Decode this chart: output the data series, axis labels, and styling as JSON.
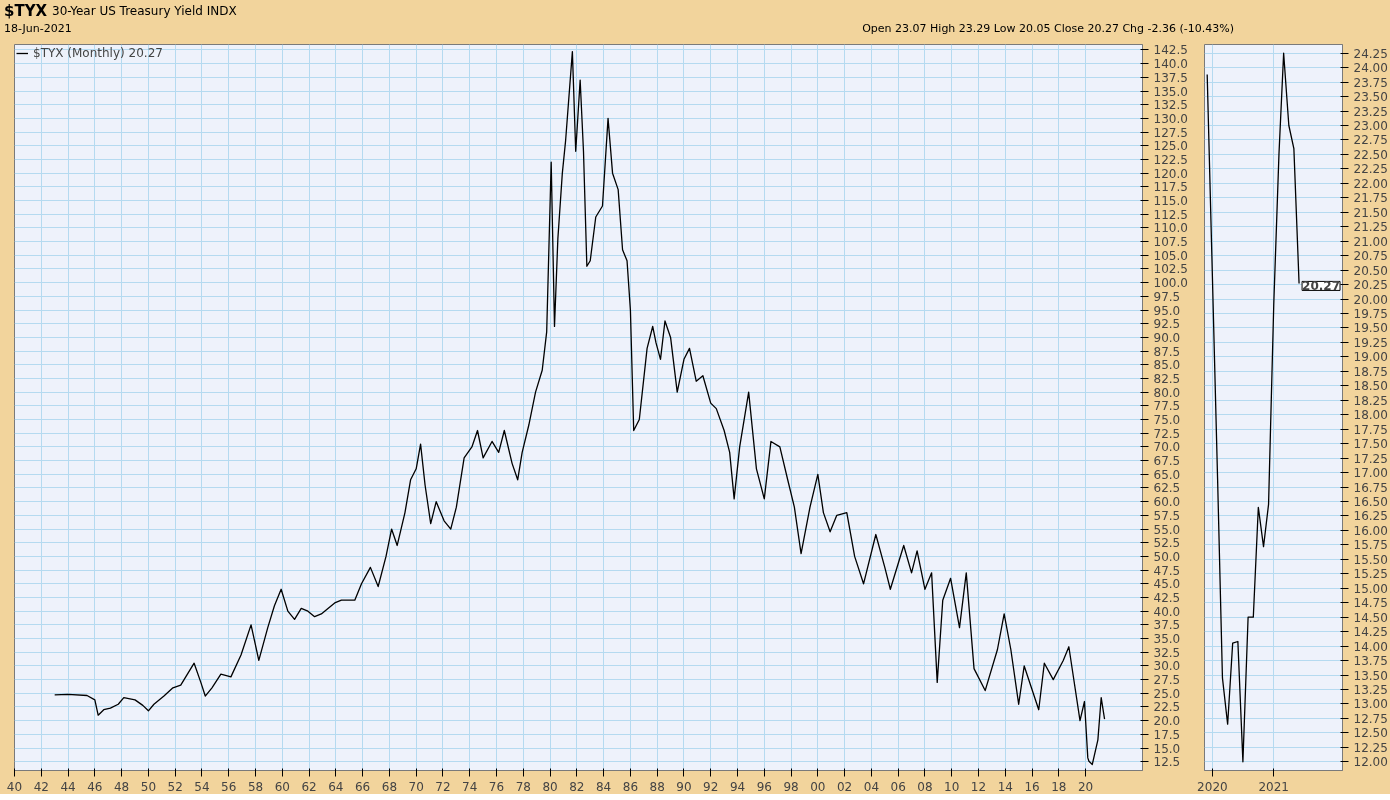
{
  "chart_data": [
    {
      "type": "line",
      "title": "$TYX 30-Year US Treasury Yield INDX",
      "subtitle": "18-Jun-2021",
      "annotations": [
        "Open 23.07  High 23.29  Low 20.05  Close 20.27  Chg -2.36 (-10.43%)"
      ],
      "x": [
        "1943-01",
        "1944-01",
        "1945-06",
        "1946-01",
        "1946-04",
        "1946-09",
        "1947-03",
        "1947-10",
        "1948-03",
        "1949-01",
        "1949-08",
        "1950-01",
        "1950-06",
        "1951-03",
        "1951-11",
        "1952-06",
        "1953-06",
        "1953-12",
        "1954-04",
        "1954-10",
        "1955-06",
        "1956-03",
        "1956-12",
        "1957-09",
        "1958-04",
        "1958-12",
        "1959-06",
        "1959-12",
        "1960-06",
        "1960-12",
        "1961-06",
        "1961-12",
        "1962-06",
        "1962-12",
        "1963-06",
        "1963-12",
        "1964-06",
        "1965-06",
        "1965-12",
        "1966-08",
        "1967-03",
        "1967-10",
        "1968-03",
        "1968-08",
        "1969-03",
        "1969-08",
        "1970-01",
        "1970-05",
        "1970-09",
        "1971-02",
        "1971-07",
        "1972-02",
        "1972-08",
        "1973-01",
        "1973-08",
        "1974-03",
        "1974-08",
        "1975-01",
        "1975-09",
        "1976-03",
        "1976-08",
        "1977-03",
        "1977-08",
        "1977-12",
        "1978-06",
        "1978-12",
        "1979-06",
        "1979-10",
        "1980-02",
        "1980-05",
        "1980-08",
        "1980-12",
        "1981-03",
        "1981-09",
        "1981-12",
        "1982-04",
        "1982-07",
        "1982-10",
        "1983-01",
        "1983-06",
        "1983-12",
        "1984-05",
        "1984-09",
        "1985-02",
        "1985-06",
        "1985-10",
        "1986-01",
        "1986-04",
        "1986-09",
        "1987-04",
        "1987-09",
        "1987-12",
        "1988-04",
        "1988-08",
        "1989-01",
        "1989-07",
        "1990-01",
        "1990-06",
        "1990-12",
        "1991-06",
        "1992-01",
        "1992-06",
        "1993-01",
        "1993-06",
        "1993-10",
        "1994-03",
        "1994-11",
        "1995-06",
        "1996-01",
        "1996-07",
        "1997-03",
        "1997-10",
        "1998-04",
        "1998-10",
        "1999-06",
        "2000-01",
        "2000-06",
        "2000-12",
        "2001-06",
        "2002-03",
        "2002-10",
        "2003-06",
        "2004-05",
        "2005-01",
        "2005-06",
        "2006-06",
        "2007-01",
        "2007-06",
        "2008-01",
        "2008-07",
        "2008-12",
        "2009-05",
        "2009-12",
        "2010-08",
        "2011-02",
        "2011-09",
        "2012-07",
        "2013-06",
        "2013-12",
        "2014-06",
        "2015-01",
        "2015-06",
        "2016-07",
        "2016-12",
        "2017-08",
        "2018-05",
        "2018-10",
        "2019-08",
        "2019-12",
        "2020-03",
        "2020-04",
        "2020-07",
        "2020-12",
        "2021-03",
        "2021-06"
      ],
      "series": [
        {
          "name": "$TYX (Monthly) 20.27",
          "color": "#000000",
          "values": [
            24.7,
            24.8,
            24.6,
            23.8,
            21.0,
            22.0,
            22.3,
            23.0,
            24.2,
            23.8,
            22.8,
            21.8,
            23.0,
            24.5,
            26.0,
            26.5,
            30.5,
            27.0,
            24.5,
            26.0,
            28.5,
            28.0,
            32.0,
            37.5,
            31.0,
            37.0,
            41.0,
            44.0,
            40.0,
            38.5,
            40.5,
            40.0,
            39.0,
            39.5,
            40.5,
            41.5,
            42.0,
            42.0,
            45.0,
            48.0,
            44.5,
            50.0,
            55.0,
            52.0,
            58.0,
            64.0,
            66.0,
            70.5,
            63.0,
            56.0,
            60.0,
            56.5,
            55.0,
            59.0,
            68.0,
            70.0,
            73.0,
            68.0,
            71.0,
            69.0,
            73.0,
            67.0,
            64.0,
            69.0,
            74.0,
            80.0,
            84.0,
            91.0,
            122.0,
            92.0,
            108.0,
            120.0,
            126.0,
            142.2,
            124.0,
            137.0,
            124.0,
            103.0,
            104.0,
            112.0,
            114.0,
            130.0,
            120.0,
            117.0,
            106.0,
            104.0,
            95.0,
            73.0,
            75.0,
            88.0,
            92.0,
            89.0,
            86.0,
            93.0,
            90.0,
            80.0,
            86.0,
            88.0,
            82.0,
            83.0,
            78.0,
            77.0,
            73.0,
            69.0,
            60.5,
            70.0,
            80.0,
            66.0,
            60.5,
            71.0,
            70.0,
            64.0,
            59.0,
            50.5,
            59.0,
            65.0,
            58.0,
            54.5,
            57.5,
            58.0,
            50.0,
            45.0,
            54.0,
            48.0,
            44.0,
            52.0,
            47.0,
            51.0,
            44.0,
            47.0,
            27.0,
            42.0,
            46.0,
            37.0,
            47.0,
            29.5,
            25.5,
            33.0,
            39.5,
            33.0,
            23.0,
            30.0,
            22.0,
            30.5,
            27.5,
            31.0,
            33.5,
            20.0,
            23.5,
            13.2,
            12.6,
            12.0,
            16.5,
            24.2,
            20.3
          ]
        }
      ],
      "xlim": [
        "1940-01",
        "2024-04"
      ],
      "ylim": [
        10.9,
        143.5
      ],
      "xticks": [
        {
          "value": "1940-01",
          "label": "40"
        },
        {
          "value": "1942-01",
          "label": "42"
        },
        {
          "value": "1944-01",
          "label": "44"
        },
        {
          "value": "1946-01",
          "label": "46"
        },
        {
          "value": "1948-01",
          "label": "48"
        },
        {
          "value": "1950-01",
          "label": "50"
        },
        {
          "value": "1952-01",
          "label": "52"
        },
        {
          "value": "1954-01",
          "label": "54"
        },
        {
          "value": "1956-01",
          "label": "56"
        },
        {
          "value": "1958-01",
          "label": "58"
        },
        {
          "value": "1960-01",
          "label": "60"
        },
        {
          "value": "1962-01",
          "label": "62"
        },
        {
          "value": "1964-01",
          "label": "64"
        },
        {
          "value": "1966-01",
          "label": "66"
        },
        {
          "value": "1968-01",
          "label": "68"
        },
        {
          "value": "1970-01",
          "label": "70"
        },
        {
          "value": "1972-01",
          "label": "72"
        },
        {
          "value": "1974-01",
          "label": "74"
        },
        {
          "value": "1976-01",
          "label": "76"
        },
        {
          "value": "1978-01",
          "label": "78"
        },
        {
          "value": "1980-01",
          "label": "80"
        },
        {
          "value": "1982-01",
          "label": "82"
        },
        {
          "value": "1984-01",
          "label": "84"
        },
        {
          "value": "1986-01",
          "label": "86"
        },
        {
          "value": "1988-01",
          "label": "88"
        },
        {
          "value": "1990-01",
          "label": "90"
        },
        {
          "value": "1992-01",
          "label": "92"
        },
        {
          "value": "1994-01",
          "label": "94"
        },
        {
          "value": "1996-01",
          "label": "96"
        },
        {
          "value": "1998-01",
          "label": "98"
        },
        {
          "value": "2000-01",
          "label": "00"
        },
        {
          "value": "2002-01",
          "label": "02"
        },
        {
          "value": "2004-01",
          "label": "04"
        },
        {
          "value": "2006-01",
          "label": "06"
        },
        {
          "value": "2008-01",
          "label": "08"
        },
        {
          "value": "2010-01",
          "label": "10"
        },
        {
          "value": "2012-01",
          "label": "12"
        },
        {
          "value": "2014-01",
          "label": "14"
        },
        {
          "value": "2016-01",
          "label": "16"
        },
        {
          "value": "2018-01",
          "label": "18"
        },
        {
          "value": "2020-01",
          "label": "20"
        }
      ],
      "yticks": [
        12.5,
        {
          "value": 15,
          "label": "15.0"
        },
        17.5,
        {
          "value": 20,
          "label": "20.0"
        },
        22.5,
        {
          "value": 25,
          "label": "25.0"
        },
        27.5,
        {
          "value": 30,
          "label": "30.0"
        },
        32.5,
        {
          "value": 35,
          "label": "35.0"
        },
        37.5,
        {
          "value": 40,
          "label": "40.0"
        },
        42.5,
        {
          "value": 45,
          "label": "45.0"
        },
        47.5,
        {
          "value": 50,
          "label": "50.0"
        },
        52.5,
        {
          "value": 55,
          "label": "55.0"
        },
        57.5,
        {
          "value": 60,
          "label": "60.0"
        },
        62.5,
        {
          "value": 65,
          "label": "65.0"
        },
        67.5,
        {
          "value": 70,
          "label": "70.0"
        },
        72.5,
        {
          "value": 75,
          "label": "75.0"
        },
        77.5,
        {
          "value": 80,
          "label": "80.0"
        },
        82.5,
        {
          "value": 85,
          "label": "85.0"
        },
        87.5,
        {
          "value": 90,
          "label": "90.0"
        },
        92.5,
        {
          "value": 95,
          "label": "95.0"
        },
        97.5,
        {
          "value": 100,
          "label": "100.0"
        },
        102.5,
        {
          "value": 105,
          "label": "105.0"
        },
        107.5,
        {
          "value": 110,
          "label": "110.0"
        },
        112.5,
        {
          "value": 115,
          "label": "115.0"
        },
        117.5,
        {
          "value": 120,
          "label": "120.0"
        },
        122.5,
        {
          "value": 125,
          "label": "125.0"
        },
        127.5,
        {
          "value": 130,
          "label": "130.0"
        },
        132.5,
        {
          "value": 135,
          "label": "135.0"
        },
        137.5,
        {
          "value": 140,
          "label": "140.0"
        },
        142.5
      ],
      "grid": true,
      "legend": "top left"
    },
    {
      "type": "line",
      "x": [
        "2019-12",
        "2020-01",
        "2020-02",
        "2020-03",
        "2020-04",
        "2020-05",
        "2020-06",
        "2020-07",
        "2020-08",
        "2020-09",
        "2020-10",
        "2020-11",
        "2020-12",
        "2021-01",
        "2021-02",
        "2021-03",
        "2021-04",
        "2021-05",
        "2021-06"
      ],
      "series": [
        {
          "color": "#000000",
          "values": [
            23.88,
            20.4,
            16.9,
            13.45,
            12.65,
            14.05,
            14.08,
            12.0,
            14.5,
            14.5,
            16.4,
            15.72,
            16.45,
            19.9,
            22.5,
            24.25,
            23.0,
            22.6,
            20.27
          ]
        }
      ],
      "annotations": [
        {
          "text": "20.27",
          "x": "2021-06",
          "y": 20.27
        }
      ],
      "xlim": [
        "2019-11-15",
        "2022-02-15"
      ],
      "ylim": [
        11.85,
        24.4
      ],
      "xticks": [
        {
          "value": "2020-01",
          "label": "2020"
        },
        {
          "value": "2021-01",
          "label": "2021"
        }
      ],
      "yticks": [
        {
          "value": 12,
          "label": "12.00"
        },
        12.25,
        {
          "value": 12.5,
          "label": "12.50"
        },
        12.75,
        {
          "value": 13,
          "label": "13.00"
        },
        13.25,
        {
          "value": 13.5,
          "label": "13.50"
        },
        13.75,
        {
          "value": 14,
          "label": "14.00"
        },
        14.25,
        {
          "value": 14.5,
          "label": "14.50"
        },
        14.75,
        {
          "value": 15,
          "label": "15.00"
        },
        15.25,
        {
          "value": 15.5,
          "label": "15.50"
        },
        15.75,
        {
          "value": 16,
          "label": "16.00"
        },
        16.25,
        {
          "value": 16.5,
          "label": "16.50"
        },
        16.75,
        {
          "value": 17,
          "label": "17.00"
        },
        17.25,
        {
          "value": 17.5,
          "label": "17.50"
        },
        17.75,
        {
          "value": 18,
          "label": "18.00"
        },
        18.25,
        {
          "value": 18.5,
          "label": "18.50"
        },
        18.75,
        {
          "value": 19,
          "label": "19.00"
        },
        19.25,
        {
          "value": 19.5,
          "label": "19.50"
        },
        19.75,
        {
          "value": 20,
          "label": "20.00"
        },
        20.25,
        {
          "value": 20.5,
          "label": "20.50"
        },
        20.75,
        {
          "value": 21,
          "label": "21.00"
        },
        21.25,
        {
          "value": 21.5,
          "label": "21.50"
        },
        21.75,
        {
          "value": 22,
          "label": "22.00"
        },
        22.25,
        {
          "value": 22.5,
          "label": "22.50"
        },
        22.75,
        {
          "value": 23,
          "label": "23.00"
        },
        23.25,
        {
          "value": 23.5,
          "label": "23.50"
        },
        23.75,
        {
          "value": 24,
          "label": "24.00"
        },
        24.25
      ],
      "grid": true
    }
  ]
}
